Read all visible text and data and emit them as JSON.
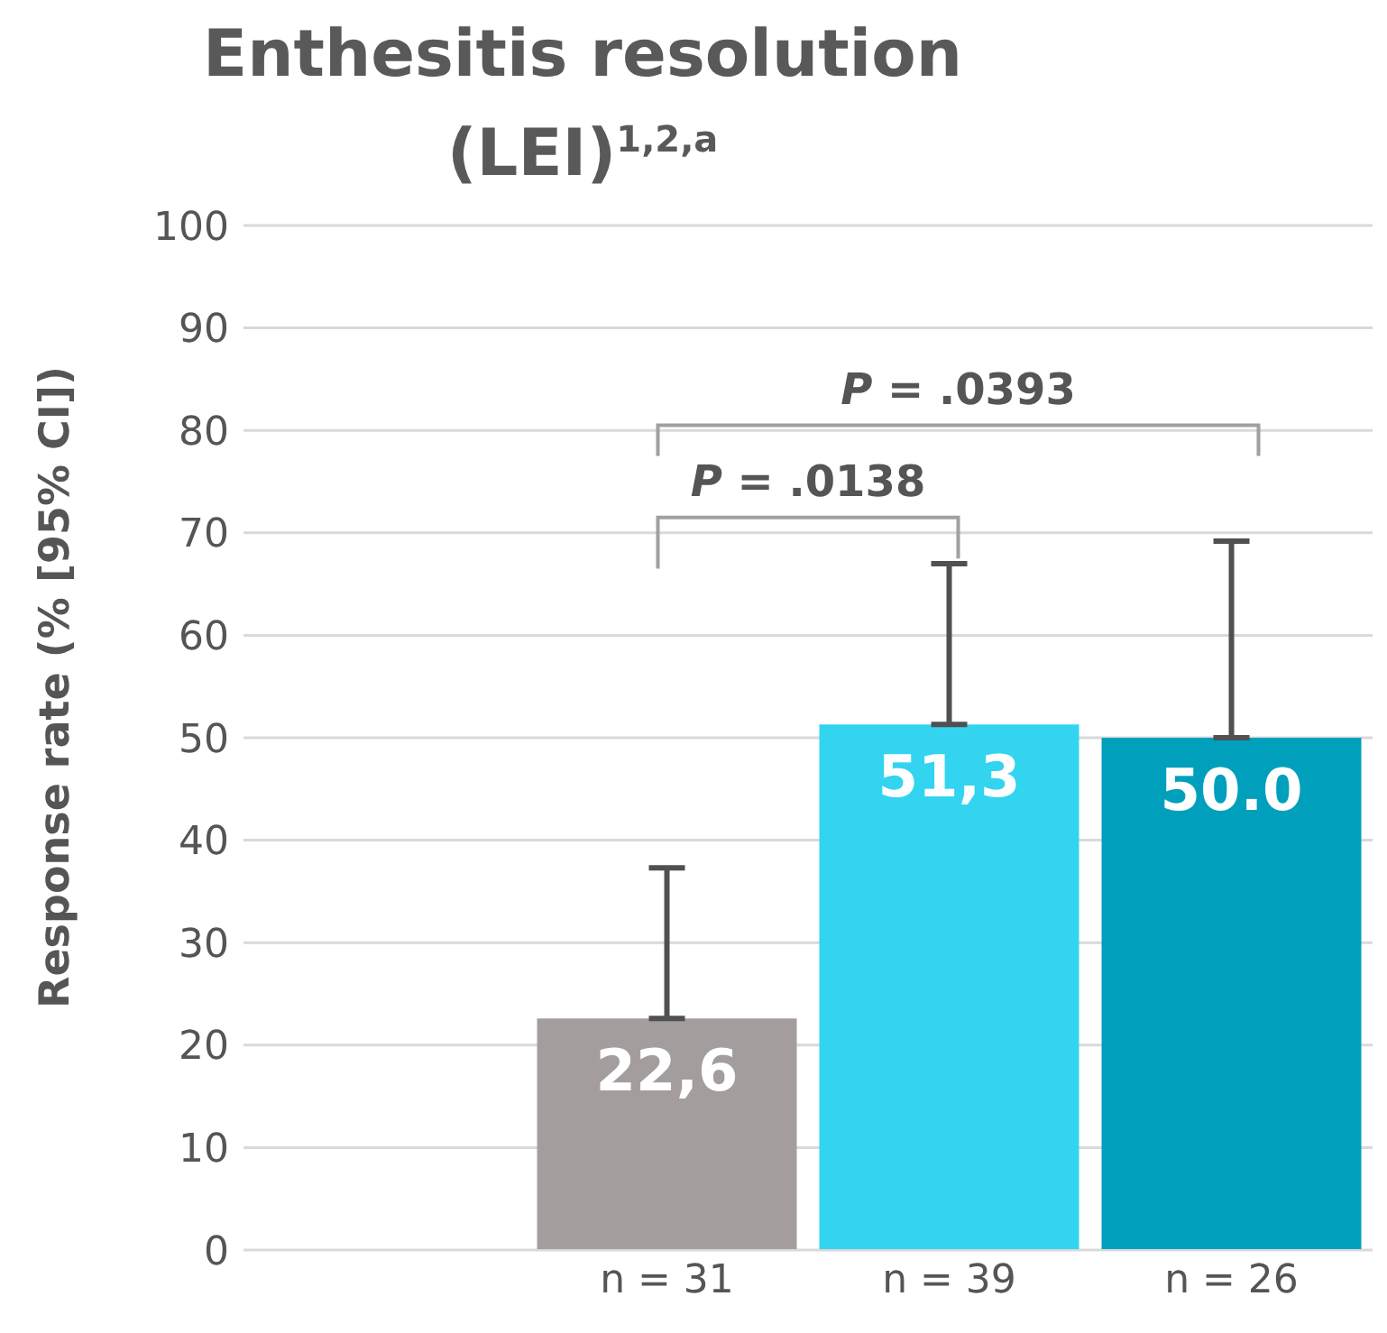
{
  "chart_data": {
    "type": "bar",
    "title": "Enthesitis resolution (LEI)$^{1,2,a}$",
    "ylabel": "Response rate (% [95% CI])",
    "categories": [
      null,
      "n = 31",
      "n = 39",
      "n = 26"
    ],
    "values": [
      null,
      22.6,
      51.3,
      50.0
    ],
    "colors": [
      "#a39e9d",
      "#a39e9d",
      "#33d4f0",
      "#00a0bd"
    ],
    "errors": [
      null,
      [
        22.6,
        37.3
      ],
      [
        51.3,
        67.0
      ],
      [
        50.0,
        69.2
      ]
    ],
    "value_labels": [
      null,
      "22,6",
      "51,3",
      "50.0"
    ],
    "annotations": [
      "P = .0138",
      "P = .0393"
    ],
    "ylim": [
      0,
      100
    ],
    "yticks": [
      0,
      10,
      20,
      30,
      40,
      50,
      60,
      70,
      80,
      90,
      100
    ],
    "grid": "y"
  }
}
